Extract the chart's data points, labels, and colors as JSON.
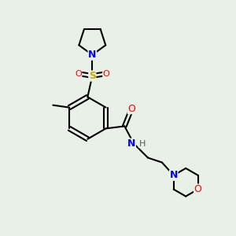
{
  "background_color": "#e8f0e8",
  "atom_colors": {
    "C": "#000000",
    "N": "#0000ff",
    "O": "#ff0000",
    "S": "#ccaa00",
    "H": "#555555"
  },
  "bond_color": "#000000",
  "figsize": [
    3.0,
    3.0
  ],
  "dpi": 100
}
